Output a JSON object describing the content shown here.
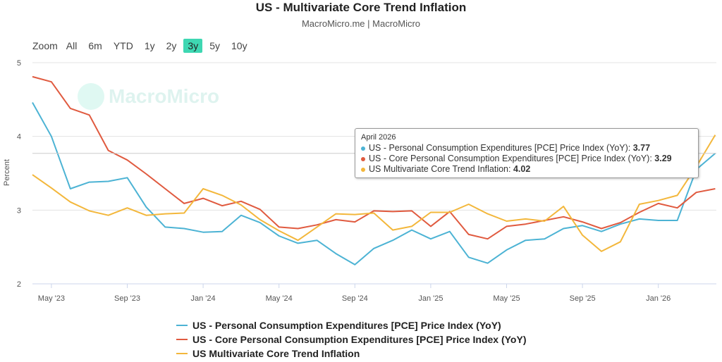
{
  "title": "US - Multivariate Core Trend Inflation",
  "subtitle": "MacroMicro.me | MacroMicro",
  "watermark": "MacroMicro",
  "range_selector": {
    "label": "Zoom",
    "options": [
      "All",
      "6m",
      "YTD",
      "1y",
      "2y",
      "3y",
      "5y",
      "10y"
    ],
    "selected": "3y"
  },
  "colors": {
    "pce": "#4cb3d4",
    "core_pce": "#e05a3f",
    "mct": "#f3b73b",
    "range_active": "#3ed7b2"
  },
  "tooltip": {
    "date": "April 2026",
    "rows": [
      {
        "label": "US - Personal Consumption Expenditures [PCE] Price Index (YoY): ",
        "value": "3.77",
        "series": "pce"
      },
      {
        "label": "US - Core Personal Consumption Expenditures [PCE] Price Index (YoY): ",
        "value": "3.29",
        "series": "core_pce"
      },
      {
        "label": "US Multivariate Core Trend Inflation: ",
        "value": "4.02",
        "series": "mct"
      }
    ]
  },
  "chart_data": {
    "type": "line",
    "ylabel": "Percent",
    "ylim": [
      2,
      5
    ],
    "yticks": [
      2,
      3,
      4,
      5
    ],
    "xticks": [
      "May '23",
      "Sep '23",
      "Jan '24",
      "May '24",
      "Sep '24",
      "Jan '25",
      "May '25",
      "Sep '25",
      "Jan '26"
    ],
    "x": [
      "2023-04",
      "2023-05",
      "2023-06",
      "2023-07",
      "2023-08",
      "2023-09",
      "2023-10",
      "2023-11",
      "2023-12",
      "2024-01",
      "2024-02",
      "2024-03",
      "2024-04",
      "2024-05",
      "2024-06",
      "2024-07",
      "2024-08",
      "2024-09",
      "2024-10",
      "2024-11",
      "2024-12",
      "2025-01",
      "2025-02",
      "2025-03",
      "2025-04",
      "2025-05",
      "2025-06",
      "2025-07",
      "2025-08",
      "2025-09",
      "2025-10",
      "2025-11",
      "2025-12",
      "2026-01",
      "2026-02",
      "2026-03",
      "2026-04"
    ],
    "series": [
      {
        "name": "US - Personal Consumption Expenditures [PCE] Price Index (YoY)",
        "key": "pce",
        "values": [
          4.46,
          4.0,
          3.29,
          3.38,
          3.39,
          3.44,
          3.04,
          2.77,
          2.75,
          2.7,
          2.71,
          2.93,
          2.83,
          2.65,
          2.55,
          2.59,
          2.41,
          2.26,
          2.48,
          2.59,
          2.73,
          2.61,
          2.71,
          2.36,
          2.28,
          2.46,
          2.59,
          2.61,
          2.75,
          2.79,
          2.71,
          2.81,
          2.88,
          2.86,
          2.86,
          3.55,
          3.77
        ]
      },
      {
        "name": "US - Core Personal Consumption Expenditures [PCE] Price Index (YoY)",
        "key": "core_pce",
        "values": [
          4.81,
          4.74,
          4.38,
          4.29,
          3.81,
          3.68,
          3.49,
          3.29,
          3.09,
          3.16,
          3.06,
          3.12,
          3.01,
          2.77,
          2.75,
          2.8,
          2.87,
          2.84,
          2.99,
          2.98,
          2.99,
          2.78,
          2.98,
          2.67,
          2.61,
          2.78,
          2.81,
          2.86,
          2.91,
          2.84,
          2.75,
          2.83,
          2.97,
          3.09,
          3.03,
          3.24,
          3.29
        ]
      },
      {
        "name": "US Multivariate Core Trend Inflation",
        "key": "mct",
        "values": [
          3.48,
          3.3,
          3.11,
          2.99,
          2.93,
          3.03,
          2.93,
          2.95,
          2.96,
          3.29,
          3.2,
          3.07,
          2.87,
          2.72,
          2.59,
          2.77,
          2.95,
          2.94,
          2.96,
          2.73,
          2.78,
          2.97,
          2.97,
          3.08,
          2.95,
          2.85,
          2.88,
          2.85,
          3.05,
          2.66,
          2.44,
          2.57,
          3.08,
          3.13,
          3.2,
          3.59,
          4.02
        ]
      }
    ],
    "grid": true,
    "legend_position": "bottom"
  }
}
